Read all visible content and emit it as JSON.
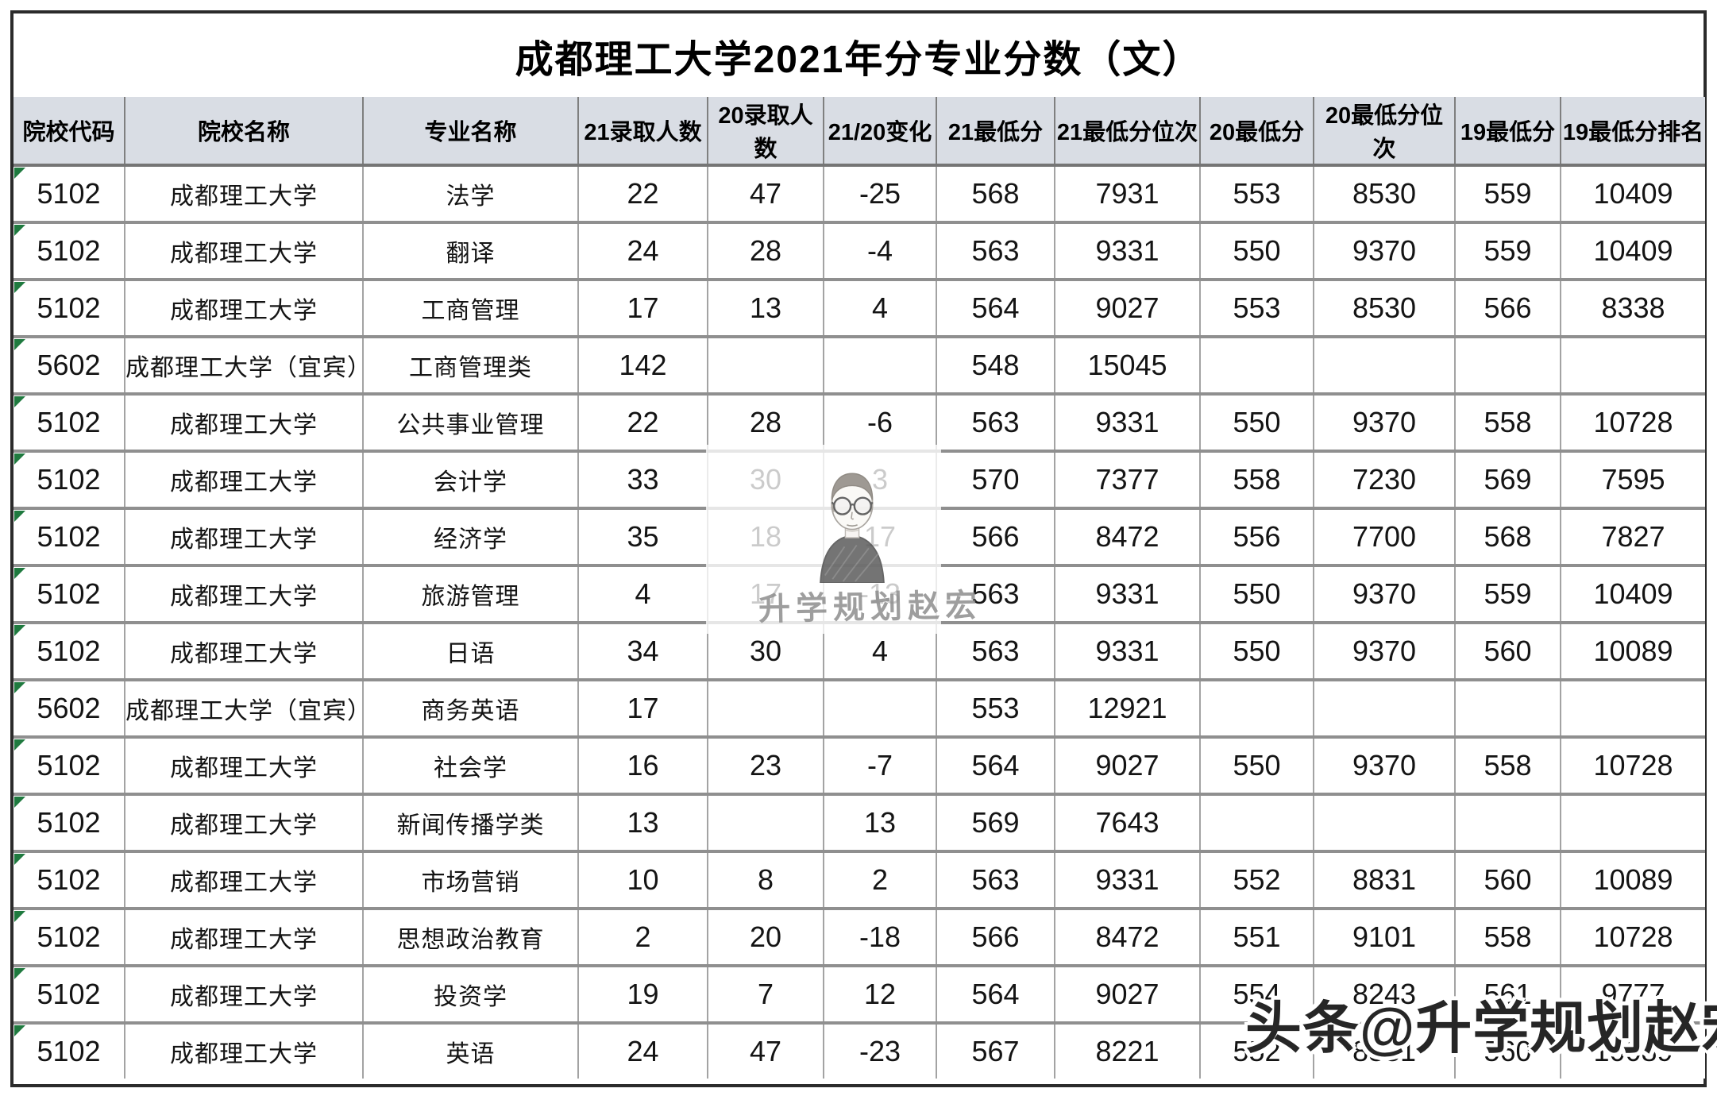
{
  "title": "成都理工大学2021年分专业分数（文）",
  "table": {
    "columns": [
      "院校代码",
      "院校名称",
      "专业名称",
      "21录取人数",
      "20录取人数",
      "21/20变化",
      "21最低分",
      "21最低分位次",
      "20最低分",
      "20最低分位次",
      "19最低分",
      "19最低分排名"
    ],
    "rows": [
      [
        "5102",
        "成都理工大学",
        "法学",
        "22",
        "47",
        "-25",
        "568",
        "7931",
        "553",
        "8530",
        "559",
        "10409"
      ],
      [
        "5102",
        "成都理工大学",
        "翻译",
        "24",
        "28",
        "-4",
        "563",
        "9331",
        "550",
        "9370",
        "559",
        "10409"
      ],
      [
        "5102",
        "成都理工大学",
        "工商管理",
        "17",
        "13",
        "4",
        "564",
        "9027",
        "553",
        "8530",
        "566",
        "8338"
      ],
      [
        "5602",
        "成都理工大学（宜宾）",
        "工商管理类",
        "142",
        "",
        "",
        "548",
        "15045",
        "",
        "",
        "",
        ""
      ],
      [
        "5102",
        "成都理工大学",
        "公共事业管理",
        "22",
        "28",
        "-6",
        "563",
        "9331",
        "550",
        "9370",
        "558",
        "10728"
      ],
      [
        "5102",
        "成都理工大学",
        "会计学",
        "33",
        "30",
        "3",
        "570",
        "7377",
        "558",
        "7230",
        "569",
        "7595"
      ],
      [
        "5102",
        "成都理工大学",
        "经济学",
        "35",
        "18",
        "17",
        "566",
        "8472",
        "556",
        "7700",
        "568",
        "7827"
      ],
      [
        "5102",
        "成都理工大学",
        "旅游管理",
        "4",
        "17",
        "-13",
        "563",
        "9331",
        "550",
        "9370",
        "559",
        "10409"
      ],
      [
        "5102",
        "成都理工大学",
        "日语",
        "34",
        "30",
        "4",
        "563",
        "9331",
        "550",
        "9370",
        "560",
        "10089"
      ],
      [
        "5602",
        "成都理工大学（宜宾）",
        "商务英语",
        "17",
        "",
        "",
        "553",
        "12921",
        "",
        "",
        "",
        ""
      ],
      [
        "5102",
        "成都理工大学",
        "社会学",
        "16",
        "23",
        "-7",
        "564",
        "9027",
        "550",
        "9370",
        "558",
        "10728"
      ],
      [
        "5102",
        "成都理工大学",
        "新闻传播学类",
        "13",
        "",
        "13",
        "569",
        "7643",
        "",
        "",
        "",
        ""
      ],
      [
        "5102",
        "成都理工大学",
        "市场营销",
        "10",
        "8",
        "2",
        "563",
        "9331",
        "552",
        "8831",
        "560",
        "10089"
      ],
      [
        "5102",
        "成都理工大学",
        "思想政治教育",
        "2",
        "20",
        "-18",
        "566",
        "8472",
        "551",
        "9101",
        "558",
        "10728"
      ],
      [
        "5102",
        "成都理工大学",
        "投资学",
        "19",
        "7",
        "12",
        "564",
        "9027",
        "554",
        "8243",
        "561",
        "9777"
      ],
      [
        "5102",
        "成都理工大学",
        "英语",
        "24",
        "47",
        "-23",
        "567",
        "8221",
        "552",
        "8831",
        "560",
        "10089"
      ]
    ]
  },
  "watermark_center": {
    "text": "升学规划赵宏"
  },
  "watermark_bottom": {
    "text": "头条@升学规划赵宏"
  },
  "colors": {
    "header_bg": "#d9dde4",
    "grid_line": "#8f8f8f",
    "flag_green": "#1f7a3f",
    "outer_border": "#2b2b2b"
  }
}
